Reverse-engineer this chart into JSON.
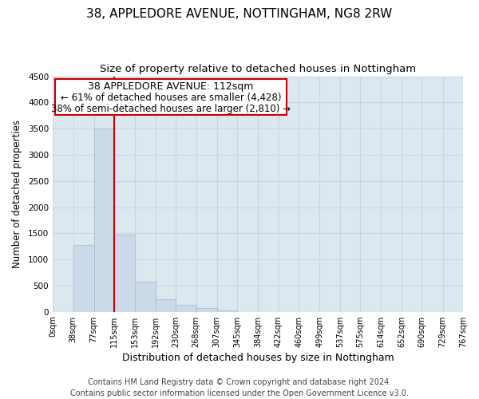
{
  "title": "38, APPLEDORE AVENUE, NOTTINGHAM, NG8 2RW",
  "subtitle": "Size of property relative to detached houses in Nottingham",
  "xlabel": "Distribution of detached houses by size in Nottingham",
  "ylabel": "Number of detached properties",
  "bin_edges": [
    0,
    38,
    77,
    115,
    153,
    192,
    230,
    268,
    307,
    345,
    384,
    422,
    460,
    499,
    537,
    575,
    614,
    652,
    690,
    729,
    767
  ],
  "bar_heights": [
    0,
    1280,
    3500,
    1480,
    570,
    240,
    130,
    70,
    20,
    0,
    0,
    0,
    0,
    0,
    0,
    0,
    0,
    0,
    0,
    0
  ],
  "bar_color": "#ccd9e8",
  "bar_edge_color": "#a8bfd4",
  "vline_x": 115,
  "vline_color": "#cc0000",
  "annotation_line1": "38 APPLEDORE AVENUE: 112sqm",
  "annotation_line2": "← 61% of detached houses are smaller (4,428)",
  "annotation_line3": "38% of semi-detached houses are larger (2,810) →",
  "box_edge_color": "#cc0000",
  "ylim": [
    0,
    4500
  ],
  "yticks": [
    0,
    500,
    1000,
    1500,
    2000,
    2500,
    3000,
    3500,
    4000,
    4500
  ],
  "tick_labels": [
    "0sqm",
    "38sqm",
    "77sqm",
    "115sqm",
    "153sqm",
    "192sqm",
    "230sqm",
    "268sqm",
    "307sqm",
    "345sqm",
    "384sqm",
    "422sqm",
    "460sqm",
    "499sqm",
    "537sqm",
    "575sqm",
    "614sqm",
    "652sqm",
    "690sqm",
    "729sqm",
    "767sqm"
  ],
  "grid_color": "#c8d4e4",
  "background_color": "#dce8f0",
  "footer_line1": "Contains HM Land Registry data © Crown copyright and database right 2024.",
  "footer_line2": "Contains public sector information licensed under the Open Government Licence v3.0.",
  "title_fontsize": 11,
  "subtitle_fontsize": 9.5,
  "xlabel_fontsize": 9,
  "ylabel_fontsize": 8.5,
  "annotation_fontsize": 9,
  "footer_fontsize": 7,
  "tick_fontsize": 7
}
